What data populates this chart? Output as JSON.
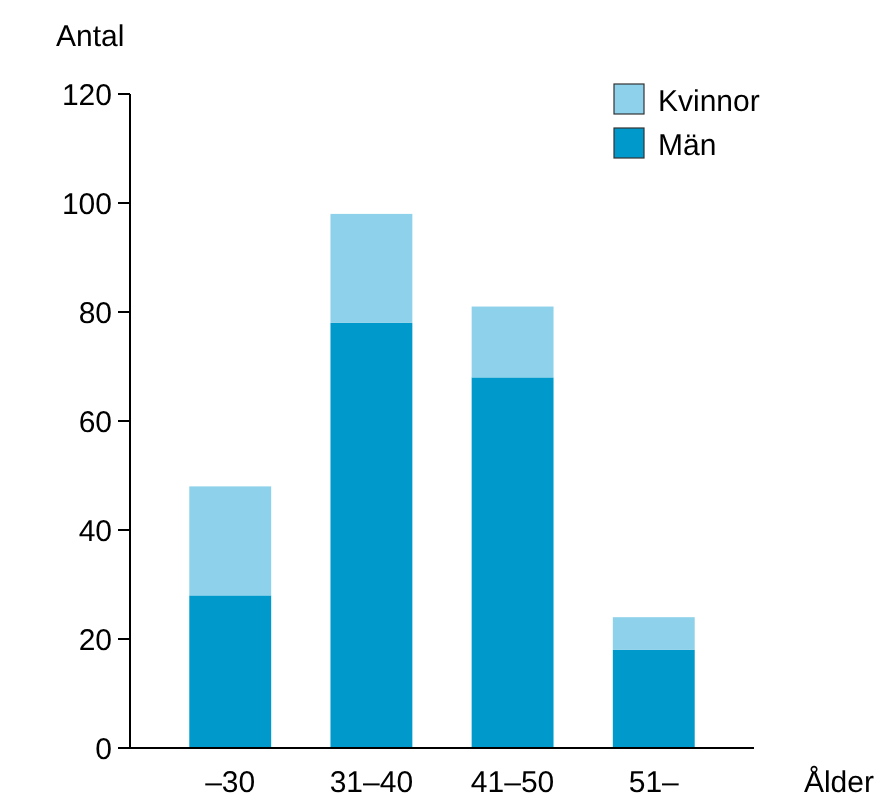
{
  "chart_data": {
    "type": "bar",
    "stacked": true,
    "xlabel": "Ålder",
    "ylabel": "Antal",
    "categories": [
      "–30",
      "31–40",
      "41–50",
      "51–"
    ],
    "series": [
      {
        "name": "Män",
        "color": "#0099cc",
        "values": [
          28,
          78,
          68,
          18
        ]
      },
      {
        "name": "Kvinnor",
        "color": "#8dd1ea",
        "values": [
          20,
          20,
          13,
          6
        ]
      }
    ],
    "ylim": [
      0,
      120
    ],
    "yticks": [
      0,
      20,
      40,
      60,
      80,
      100,
      120
    ],
    "grid": false,
    "legend": "top right"
  }
}
